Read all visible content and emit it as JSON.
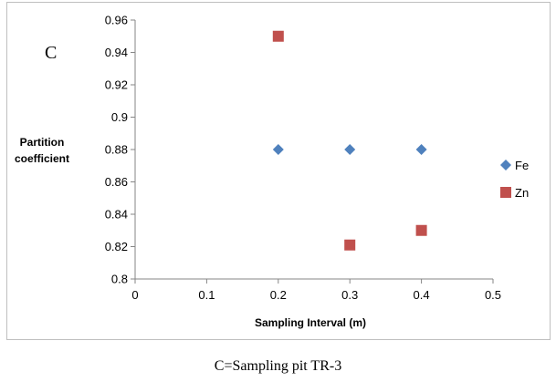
{
  "caption": "C=Sampling pit TR-3",
  "chart_data": {
    "type": "scatter",
    "panel_label": "C",
    "xlabel": "Sampling Interval (m)",
    "ylabel_lines": [
      "Partition",
      "coefficient"
    ],
    "xlim": [
      0,
      0.5
    ],
    "ylim": [
      0.8,
      0.96
    ],
    "x_ticks": [
      "0",
      "0.1",
      "0.2",
      "0.3",
      "0.4",
      "0.5"
    ],
    "y_ticks": [
      "0.8",
      "0.82",
      "0.84",
      "0.86",
      "0.88",
      "0.9",
      "0.92",
      "0.94",
      "0.96"
    ],
    "grid": false,
    "legend_position": "right",
    "series": [
      {
        "name": "Fe",
        "marker": "diamond",
        "color": "#4f81bd",
        "x": [
          0.2,
          0.3,
          0.4
        ],
        "y": [
          0.88,
          0.88,
          0.88
        ]
      },
      {
        "name": "Zn",
        "marker": "square",
        "color": "#c0504d",
        "x": [
          0.2,
          0.3,
          0.4
        ],
        "y": [
          0.95,
          0.821,
          0.83
        ]
      }
    ]
  }
}
